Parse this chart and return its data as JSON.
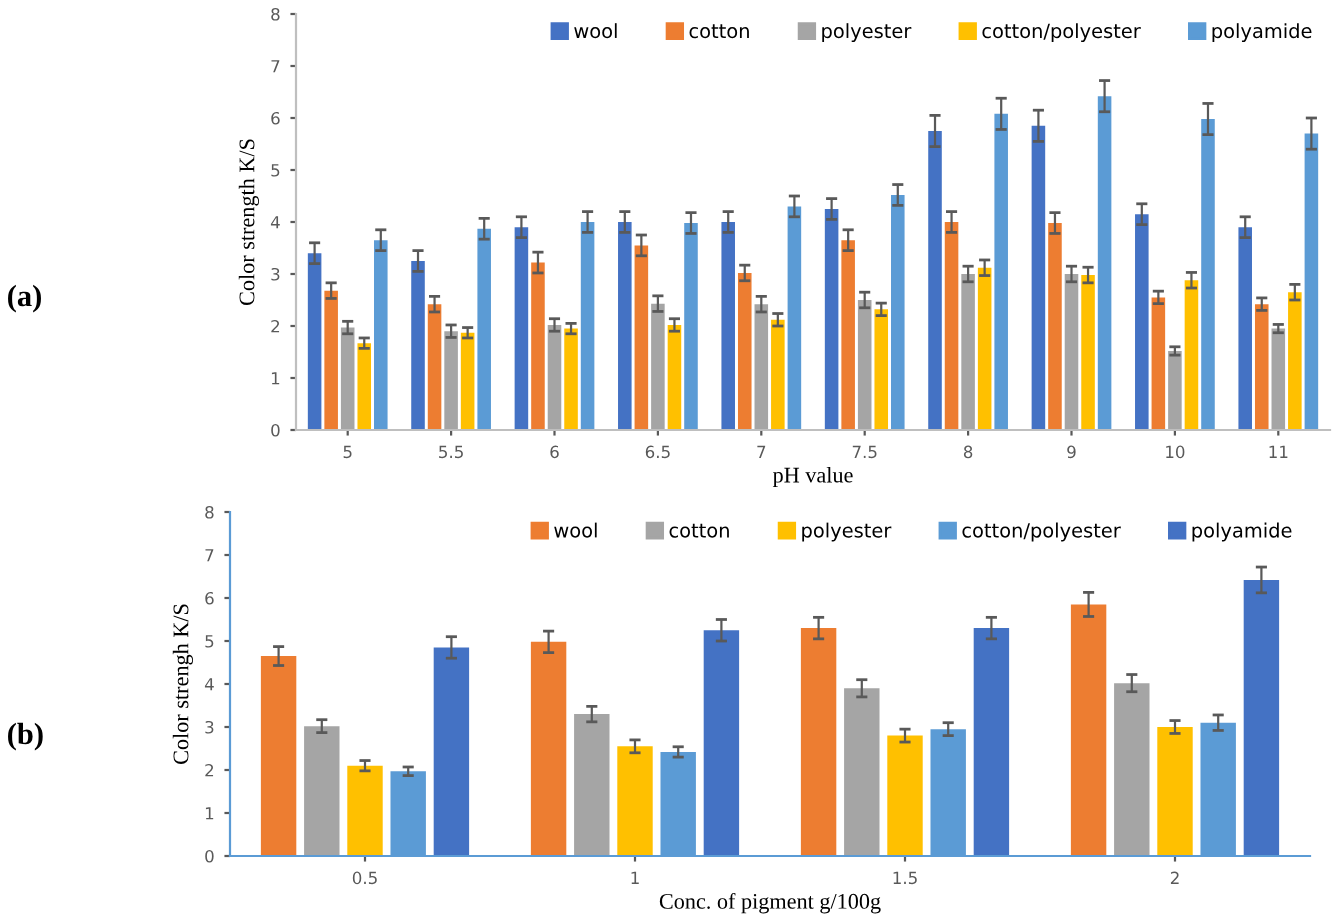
{
  "chart_data": [
    {
      "type": "bar",
      "xlabel": "pH value",
      "ylabel": "Color strength K/S",
      "annotations": [
        "(a)"
      ],
      "categories": [
        "5",
        "5.5",
        "6",
        "6.5",
        "7",
        "7.5",
        "8",
        "9",
        "10",
        "11"
      ],
      "ylim": [
        0,
        8
      ],
      "yticks": [
        0,
        1,
        2,
        3,
        4,
        5,
        6,
        7,
        8
      ],
      "grid": false,
      "legend": "top right",
      "series": [
        {
          "name": "wool",
          "color": "#4472c4",
          "values": [
            3.4,
            3.25,
            3.9,
            4.0,
            4.0,
            4.25,
            5.75,
            5.85,
            4.15,
            3.9
          ],
          "errors": [
            0.2,
            0.2,
            0.2,
            0.2,
            0.2,
            0.2,
            0.3,
            0.3,
            0.2,
            0.2
          ]
        },
        {
          "name": "cotton",
          "color": "#ed7d31",
          "values": [
            2.68,
            2.42,
            3.22,
            3.55,
            3.02,
            3.65,
            4.0,
            3.98,
            2.55,
            2.42
          ],
          "errors": [
            0.15,
            0.15,
            0.2,
            0.2,
            0.15,
            0.2,
            0.2,
            0.2,
            0.12,
            0.12
          ]
        },
        {
          "name": "polyester",
          "color": "#a5a5a5",
          "values": [
            1.97,
            1.9,
            2.02,
            2.43,
            2.42,
            2.5,
            3.0,
            3.0,
            1.52,
            1.95
          ],
          "errors": [
            0.12,
            0.12,
            0.12,
            0.15,
            0.15,
            0.15,
            0.15,
            0.15,
            0.08,
            0.08
          ]
        },
        {
          "name": "cotton/polyester",
          "color": "#ffc000",
          "values": [
            1.67,
            1.87,
            1.95,
            2.02,
            2.12,
            2.32,
            3.12,
            2.98,
            2.88,
            2.65
          ],
          "errors": [
            0.1,
            0.1,
            0.1,
            0.12,
            0.12,
            0.12,
            0.15,
            0.15,
            0.15,
            0.15
          ]
        },
        {
          "name": "polyamide",
          "color": "#5b9bd5",
          "values": [
            3.65,
            3.87,
            4.0,
            3.98,
            4.3,
            4.52,
            6.08,
            6.42,
            5.98,
            5.7
          ],
          "errors": [
            0.2,
            0.2,
            0.2,
            0.2,
            0.2,
            0.2,
            0.3,
            0.3,
            0.3,
            0.3
          ]
        }
      ]
    },
    {
      "type": "bar",
      "xlabel": "Conc. of pigment g/100g",
      "ylabel": "Color strengh K/S",
      "annotations": [
        "(b)"
      ],
      "categories": [
        "0.5",
        "1",
        "1.5",
        "2"
      ],
      "ylim": [
        0,
        8
      ],
      "yticks": [
        0,
        1,
        2,
        3,
        4,
        5,
        6,
        7,
        8
      ],
      "grid": false,
      "legend": "top right",
      "series": [
        {
          "name": "wool",
          "color": "#ed7d31",
          "values": [
            4.65,
            4.98,
            5.3,
            5.85
          ],
          "errors": [
            0.22,
            0.25,
            0.25,
            0.28
          ]
        },
        {
          "name": "cotton",
          "color": "#a5a5a5",
          "values": [
            3.02,
            3.3,
            3.9,
            4.02
          ],
          "errors": [
            0.15,
            0.18,
            0.2,
            0.2
          ]
        },
        {
          "name": "polyester",
          "color": "#ffc000",
          "values": [
            2.1,
            2.55,
            2.8,
            3.0
          ],
          "errors": [
            0.12,
            0.15,
            0.15,
            0.15
          ]
        },
        {
          "name": "cotton/polyester",
          "color": "#5b9bd5",
          "values": [
            1.97,
            2.42,
            2.95,
            3.1
          ],
          "errors": [
            0.1,
            0.12,
            0.15,
            0.18
          ]
        },
        {
          "name": "polyamide",
          "color": "#4472c4",
          "values": [
            4.85,
            5.25,
            5.3,
            6.42
          ],
          "errors": [
            0.25,
            0.25,
            0.25,
            0.3
          ]
        }
      ]
    }
  ]
}
